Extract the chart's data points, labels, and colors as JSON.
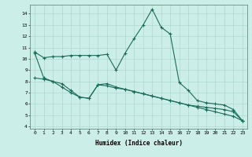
{
  "xlabel": "Humidex (Indice chaleur)",
  "background_color": "#cceee8",
  "grid_color": "#b0d9d0",
  "line_color": "#1a6b5a",
  "xlim": [
    -0.5,
    23.5
  ],
  "ylim": [
    3.8,
    14.8
  ],
  "xticks": [
    0,
    1,
    2,
    3,
    4,
    5,
    6,
    7,
    8,
    9,
    10,
    11,
    12,
    13,
    14,
    15,
    16,
    17,
    18,
    19,
    20,
    21,
    22,
    23
  ],
  "yticks": [
    4,
    5,
    6,
    7,
    8,
    9,
    10,
    11,
    12,
    13,
    14
  ],
  "line1_x": [
    0,
    1,
    2,
    3,
    4,
    5,
    6,
    7,
    8,
    9,
    10,
    11,
    12,
    13,
    14,
    15,
    16,
    17,
    18,
    19,
    20,
    21,
    22,
    23
  ],
  "line1_y": [
    10.6,
    10.1,
    10.2,
    10.2,
    10.3,
    10.3,
    10.3,
    10.3,
    10.4,
    9.0,
    10.5,
    11.8,
    13.0,
    14.4,
    12.8,
    12.2,
    7.9,
    7.2,
    6.3,
    6.1,
    6.0,
    5.9,
    5.5,
    4.5
  ],
  "line2_x": [
    0,
    1,
    2,
    3,
    4,
    5,
    6,
    7,
    8,
    9,
    10,
    11,
    12,
    13,
    14,
    15,
    16,
    17,
    18,
    19,
    20,
    21,
    22,
    23
  ],
  "line2_y": [
    8.3,
    8.2,
    8.0,
    7.5,
    7.0,
    6.6,
    6.5,
    7.7,
    7.8,
    7.5,
    7.3,
    7.1,
    6.9,
    6.7,
    6.5,
    6.3,
    6.1,
    5.9,
    5.8,
    5.7,
    5.6,
    5.5,
    5.3,
    4.5
  ],
  "line3_x": [
    0,
    1,
    2,
    3,
    4,
    5,
    6,
    7,
    8,
    9,
    10,
    11,
    12,
    13,
    14,
    15,
    16,
    17,
    18,
    19,
    20,
    21,
    22,
    23
  ],
  "line3_y": [
    10.5,
    8.3,
    8.0,
    7.8,
    7.2,
    6.6,
    6.5,
    7.7,
    7.6,
    7.4,
    7.3,
    7.1,
    6.9,
    6.7,
    6.5,
    6.3,
    6.1,
    5.9,
    5.7,
    5.5,
    5.3,
    5.1,
    4.9,
    4.5
  ]
}
